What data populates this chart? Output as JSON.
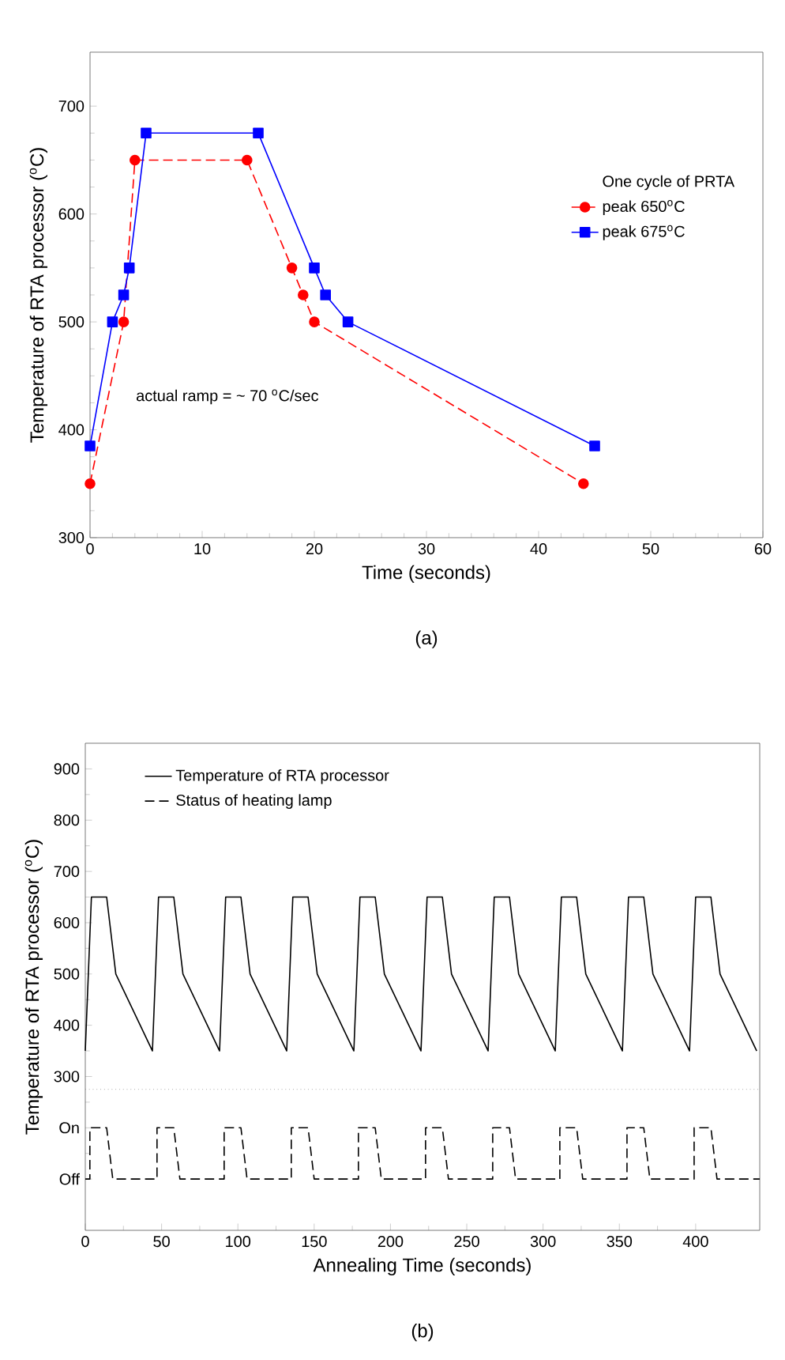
{
  "chart_data": [
    {
      "type": "line",
      "xlabel": "Time (seconds)",
      "ylabel": "Temperature of RTA processor ($^{o}$C)",
      "legend_title": "One cycle of PRTA",
      "legend": "right",
      "grid": false,
      "xlim": [
        0,
        60
      ],
      "xticks": [
        0,
        10,
        20,
        30,
        40,
        50,
        60
      ],
      "ylim": [
        300,
        750
      ],
      "yticks": [
        300,
        400,
        500,
        600,
        700
      ],
      "series": [
        {
          "name": "peak 650$^{o}$C",
          "color": "#ff0000",
          "marker": "circle",
          "line_style": "dashed",
          "x": [
            0,
            3,
            4,
            14,
            18,
            19,
            20,
            44
          ],
          "values": [
            350,
            500,
            650,
            650,
            550,
            525,
            500,
            350
          ]
        },
        {
          "name": "peak 675$^{o}$C",
          "color": "#0000ff",
          "marker": "square",
          "line_style": "solid",
          "x": [
            0,
            2,
            3,
            3.5,
            5,
            15,
            20,
            21,
            23,
            45
          ],
          "values": [
            385,
            500,
            525,
            550,
            675,
            675,
            550,
            525,
            500,
            385
          ]
        }
      ],
      "annotations": [
        "actual ramp = ~ 70 $^{o}$C/sec",
        "(a)"
      ]
    },
    {
      "type": "line",
      "xlabel": "Annealing Time (seconds)",
      "ylabel": "Temperature of RTA processor ($^{o}$C)",
      "legend": "top left",
      "grid": false,
      "marker": "none",
      "xlim": [
        0,
        442
      ],
      "xticks": [
        0,
        50,
        100,
        150,
        200,
        250,
        300,
        350,
        400
      ],
      "ylim": [
        0,
        950
      ],
      "yticks": [
        {
          "value": 100,
          "label": "Off"
        },
        {
          "value": 200,
          "label": "On"
        },
        300,
        400,
        500,
        600,
        700,
        800,
        900
      ],
      "series": [
        {
          "name": "Temperature of RTA processor",
          "color": "#000000",
          "line_style": "solid",
          "x": [
            0,
            4,
            14,
            20,
            44,
            48,
            58,
            64,
            88,
            92,
            102,
            108,
            132,
            136,
            146,
            152,
            176,
            180,
            190,
            196,
            220,
            224,
            234,
            240,
            264,
            268,
            278,
            284,
            308,
            312,
            322,
            328,
            352,
            356,
            366,
            372,
            396,
            400,
            410,
            416,
            440
          ],
          "values": [
            350,
            650,
            650,
            500,
            350,
            650,
            650,
            500,
            350,
            650,
            650,
            500,
            350,
            650,
            650,
            500,
            350,
            650,
            650,
            500,
            350,
            650,
            650,
            500,
            350,
            650,
            650,
            500,
            350,
            650,
            650,
            500,
            350,
            650,
            650,
            500,
            350,
            650,
            650,
            500,
            350
          ]
        },
        {
          "name": "Status of heating lamp",
          "color": "#000000",
          "line_style": "dashed",
          "x": [
            0,
            3,
            3,
            14,
            18,
            47,
            47,
            58,
            62,
            91,
            91,
            102,
            106,
            135,
            135,
            146,
            150,
            179,
            179,
            190,
            194,
            223,
            223,
            234,
            238,
            267,
            267,
            278,
            282,
            311,
            311,
            322,
            326,
            355,
            355,
            366,
            370,
            399,
            399,
            410,
            414,
            442
          ],
          "values": [
            100,
            100,
            200,
            200,
            100,
            100,
            200,
            200,
            100,
            100,
            200,
            200,
            100,
            100,
            200,
            200,
            100,
            100,
            200,
            200,
            100,
            100,
            200,
            200,
            100,
            100,
            200,
            200,
            100,
            100,
            200,
            200,
            100,
            100,
            200,
            200,
            100,
            100,
            200,
            200,
            100,
            100
          ]
        }
      ],
      "ref_lines": [
        {
          "axis": "y",
          "value": 275,
          "color": "#808080",
          "line_style": "dotted"
        }
      ],
      "annotations": [
        "(b)"
      ]
    }
  ]
}
